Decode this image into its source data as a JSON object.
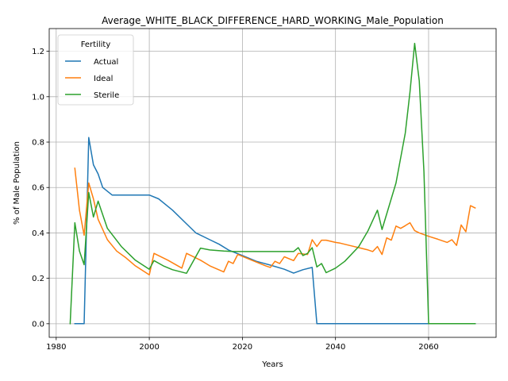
{
  "chart_data": {
    "type": "line",
    "title": "Average_WHITE_BLACK_DIFFERENCE_HARD_WORKING_Male_Population",
    "xlabel": "Years",
    "ylabel": "% of Male Population",
    "xlim": [
      1978.5,
      2074.5
    ],
    "ylim": [
      -0.06,
      1.3
    ],
    "xticks": [
      1980,
      2000,
      2020,
      2040,
      2060
    ],
    "yticks": [
      0.0,
      0.2,
      0.4,
      0.6,
      0.8,
      1.0,
      1.2
    ],
    "xtick_labels": [
      "1980",
      "2000",
      "2020",
      "2040",
      "2060"
    ],
    "ytick_labels": [
      "0.0",
      "0.2",
      "0.4",
      "0.6",
      "0.8",
      "1.0",
      "1.2"
    ],
    "grid": true,
    "legend": {
      "title": "Fertility",
      "placement": "top-left"
    },
    "series": [
      {
        "name": "Actual",
        "color": "#1f77b4",
        "points": [
          [
            1984,
            0.0
          ],
          [
            1986,
            0.0
          ],
          [
            1987,
            0.82
          ],
          [
            1988,
            0.7
          ],
          [
            1989,
            0.66
          ],
          [
            1990,
            0.6
          ],
          [
            1992,
            0.567
          ],
          [
            1994,
            0.567
          ],
          [
            1996,
            0.567
          ],
          [
            1998,
            0.567
          ],
          [
            2000,
            0.567
          ],
          [
            2002,
            0.55
          ],
          [
            2005,
            0.5
          ],
          [
            2008,
            0.44
          ],
          [
            2010,
            0.4
          ],
          [
            2013,
            0.37
          ],
          [
            2015,
            0.35
          ],
          [
            2017,
            0.325
          ],
          [
            2020,
            0.3
          ],
          [
            2023,
            0.275
          ],
          [
            2026,
            0.258
          ],
          [
            2029,
            0.24
          ],
          [
            2031,
            0.223
          ],
          [
            2033,
            0.238
          ],
          [
            2035,
            0.248
          ],
          [
            2036,
            0.0
          ],
          [
            2040,
            0.0
          ],
          [
            2050,
            0.0
          ],
          [
            2060,
            0.0
          ],
          [
            2070,
            0.0
          ]
        ]
      },
      {
        "name": "Ideal",
        "color": "#ff7f0e",
        "points": [
          [
            1984,
            0.685
          ],
          [
            1985,
            0.5
          ],
          [
            1986,
            0.39
          ],
          [
            1987,
            0.62
          ],
          [
            1988,
            0.55
          ],
          [
            1989,
            0.46
          ],
          [
            1991,
            0.37
          ],
          [
            1993,
            0.32
          ],
          [
            1995,
            0.29
          ],
          [
            1997,
            0.255
          ],
          [
            2000,
            0.215
          ],
          [
            2001,
            0.31
          ],
          [
            2004,
            0.28
          ],
          [
            2007,
            0.245
          ],
          [
            2008,
            0.31
          ],
          [
            2011,
            0.28
          ],
          [
            2013,
            0.255
          ],
          [
            2016,
            0.228
          ],
          [
            2017,
            0.275
          ],
          [
            2018,
            0.265
          ],
          [
            2019,
            0.305
          ],
          [
            2022,
            0.28
          ],
          [
            2025,
            0.255
          ],
          [
            2026,
            0.248
          ],
          [
            2027,
            0.275
          ],
          [
            2028,
            0.265
          ],
          [
            2029,
            0.295
          ],
          [
            2031,
            0.278
          ],
          [
            2032,
            0.31
          ],
          [
            2034,
            0.305
          ],
          [
            2035,
            0.37
          ],
          [
            2036,
            0.34
          ],
          [
            2037,
            0.368
          ],
          [
            2038,
            0.368
          ],
          [
            2040,
            0.358
          ],
          [
            2041,
            0.355
          ],
          [
            2043,
            0.345
          ],
          [
            2045,
            0.335
          ],
          [
            2047,
            0.325
          ],
          [
            2048,
            0.318
          ],
          [
            2049,
            0.34
          ],
          [
            2050,
            0.305
          ],
          [
            2051,
            0.378
          ],
          [
            2052,
            0.368
          ],
          [
            2053,
            0.43
          ],
          [
            2054,
            0.42
          ],
          [
            2055,
            0.432
          ],
          [
            2056,
            0.445
          ],
          [
            2057,
            0.41
          ],
          [
            2058,
            0.4
          ],
          [
            2060,
            0.385
          ],
          [
            2062,
            0.372
          ],
          [
            2064,
            0.358
          ],
          [
            2065,
            0.37
          ],
          [
            2066,
            0.345
          ],
          [
            2067,
            0.435
          ],
          [
            2068,
            0.405
          ],
          [
            2069,
            0.52
          ],
          [
            2070,
            0.51
          ]
        ]
      },
      {
        "name": "Sterile",
        "color": "#2ca02c",
        "points": [
          [
            1983,
            0.0
          ],
          [
            1984,
            0.445
          ],
          [
            1985,
            0.32
          ],
          [
            1986,
            0.26
          ],
          [
            1987,
            0.578
          ],
          [
            1988,
            0.47
          ],
          [
            1989,
            0.54
          ],
          [
            1990,
            0.48
          ],
          [
            1991,
            0.42
          ],
          [
            1994,
            0.34
          ],
          [
            1997,
            0.28
          ],
          [
            2000,
            0.24
          ],
          [
            2001,
            0.278
          ],
          [
            2003,
            0.255
          ],
          [
            2005,
            0.238
          ],
          [
            2008,
            0.222
          ],
          [
            2011,
            0.333
          ],
          [
            2013,
            0.325
          ],
          [
            2016,
            0.32
          ],
          [
            2018,
            0.318
          ],
          [
            2020,
            0.318
          ],
          [
            2025,
            0.318
          ],
          [
            2031,
            0.318
          ],
          [
            2032,
            0.335
          ],
          [
            2033,
            0.3
          ],
          [
            2034,
            0.31
          ],
          [
            2035,
            0.335
          ],
          [
            2036,
            0.25
          ],
          [
            2037,
            0.265
          ],
          [
            2038,
            0.225
          ],
          [
            2040,
            0.245
          ],
          [
            2042,
            0.275
          ],
          [
            2045,
            0.34
          ],
          [
            2047,
            0.41
          ],
          [
            2049,
            0.5
          ],
          [
            2050,
            0.415
          ],
          [
            2053,
            0.62
          ],
          [
            2055,
            0.84
          ],
          [
            2056,
            1.02
          ],
          [
            2057,
            1.235
          ],
          [
            2058,
            1.07
          ],
          [
            2059,
            0.67
          ],
          [
            2060,
            0.0
          ],
          [
            2065,
            0.0
          ],
          [
            2070,
            0.0
          ]
        ]
      }
    ]
  }
}
